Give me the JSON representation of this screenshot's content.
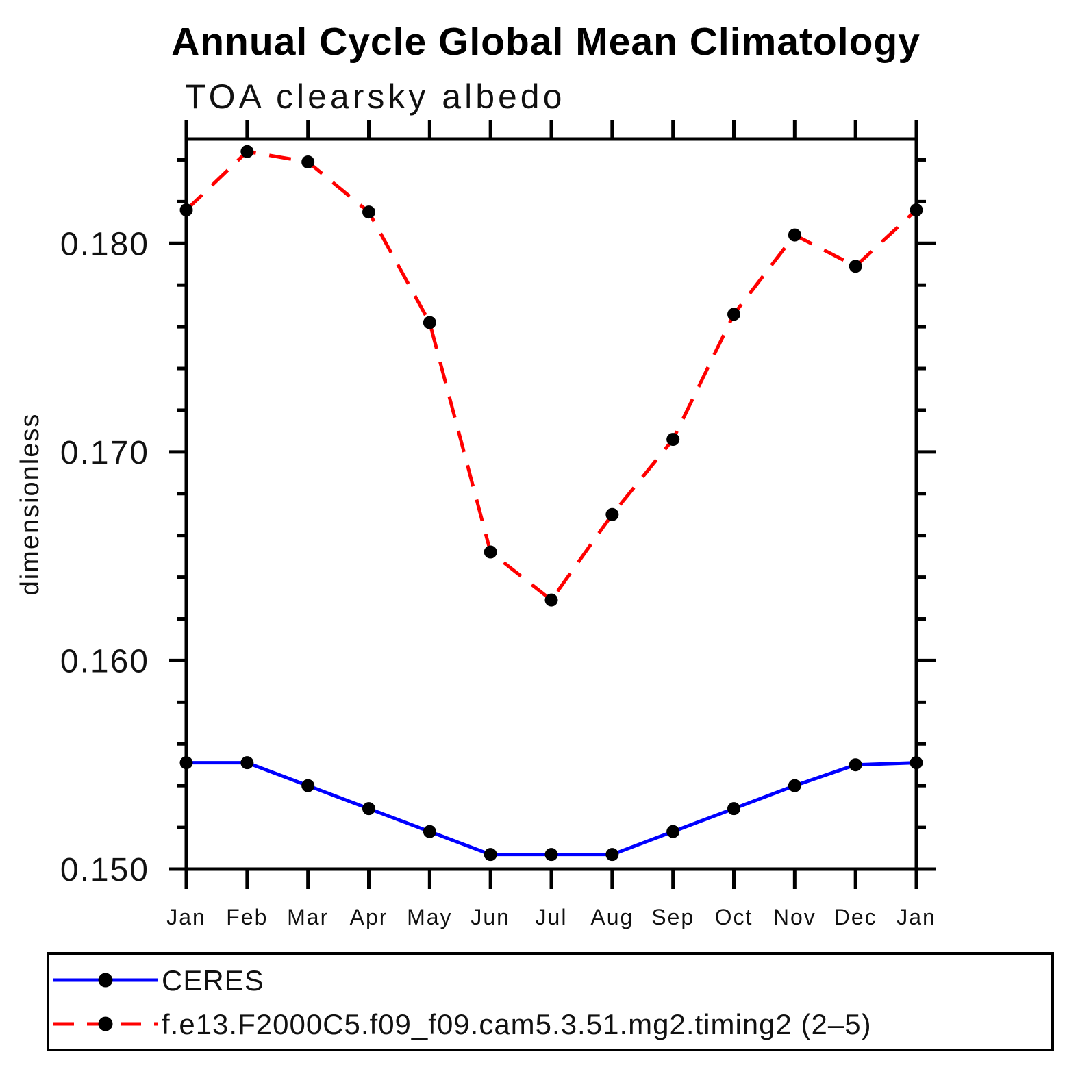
{
  "page_title": "Annual Cycle Global Mean Climatology",
  "chart_data": {
    "type": "line",
    "title": "Annual Cycle Global Mean Climatology",
    "subtitle": "TOA clearsky albedo",
    "xlabel": "",
    "ylabel": "dimensionless",
    "x_tick_labels": [
      "Jan",
      "Feb",
      "Mar",
      "Apr",
      "May",
      "Jun",
      "Jul",
      "Aug",
      "Sep",
      "Oct",
      "Nov",
      "Dec",
      "Jan"
    ],
    "ylim": [
      0.15,
      0.185
    ],
    "y_major_ticks": [
      0.15,
      0.16,
      0.17,
      0.18
    ],
    "y_tick_labels": [
      "0.150",
      "0.160",
      "0.170",
      "0.180"
    ],
    "y_minor_step": 0.002,
    "grid": false,
    "frame_color": "#000000",
    "legend_position": "bottom-left-box",
    "series": [
      {
        "name": "CERES",
        "color": "#0000ff",
        "line_style": "solid",
        "marker": "circle",
        "marker_color": "#000000",
        "values": [
          0.1551,
          0.1551,
          0.154,
          0.1529,
          0.1518,
          0.1507,
          0.1507,
          0.1507,
          0.1518,
          0.1529,
          0.154,
          0.155,
          0.1551
        ]
      },
      {
        "name": "f.e13.F2000C5.f09_f09.cam5.3.51.mg2.timing2 (2–5)",
        "color": "#ff0000",
        "line_style": "dashed",
        "marker": "circle",
        "marker_color": "#000000",
        "values": [
          0.1816,
          0.1844,
          0.1839,
          0.1815,
          0.1762,
          0.1652,
          0.1629,
          0.167,
          0.1706,
          0.1766,
          0.1804,
          0.1789,
          0.1816
        ]
      }
    ]
  }
}
